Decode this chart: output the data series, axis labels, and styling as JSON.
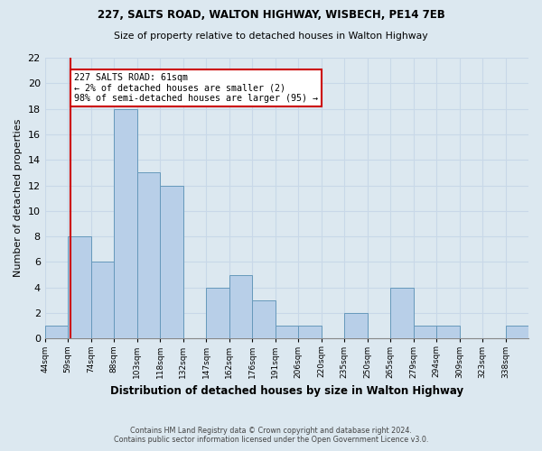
{
  "title1": "227, SALTS ROAD, WALTON HIGHWAY, WISBECH, PE14 7EB",
  "title2": "Size of property relative to detached houses in Walton Highway",
  "xlabel": "Distribution of detached houses by size in Walton Highway",
  "ylabel": "Number of detached properties",
  "footnote": "Contains HM Land Registry data © Crown copyright and database right 2024.\nContains public sector information licensed under the Open Government Licence v3.0.",
  "bin_labels": [
    "44sqm",
    "59sqm",
    "74sqm",
    "88sqm",
    "103sqm",
    "118sqm",
    "132sqm",
    "147sqm",
    "162sqm",
    "176sqm",
    "191sqm",
    "206sqm",
    "220sqm",
    "235sqm",
    "250sqm",
    "265sqm",
    "279sqm",
    "294sqm",
    "309sqm",
    "323sqm",
    "338sqm"
  ],
  "counts": [
    1,
    8,
    6,
    18,
    13,
    12,
    0,
    4,
    5,
    3,
    1,
    1,
    0,
    2,
    0,
    4,
    1,
    1,
    0,
    0,
    1
  ],
  "bar_color": "#b8cfe8",
  "bar_edge_color": "#6699bb",
  "red_line_color": "#cc0000",
  "red_line_bin": 1,
  "annotation_title": "227 SALTS ROAD: 61sqm",
  "annotation_line1": "← 2% of detached houses are smaller (2)",
  "annotation_line2": "98% of semi-detached houses are larger (95) →",
  "annotation_box_color": "#ffffff",
  "annotation_box_edge": "#cc0000",
  "ylim": [
    0,
    22
  ],
  "yticks": [
    0,
    2,
    4,
    6,
    8,
    10,
    12,
    14,
    16,
    18,
    20,
    22
  ],
  "grid_color": "#c8d8e8",
  "background_color": "#dce8f0"
}
